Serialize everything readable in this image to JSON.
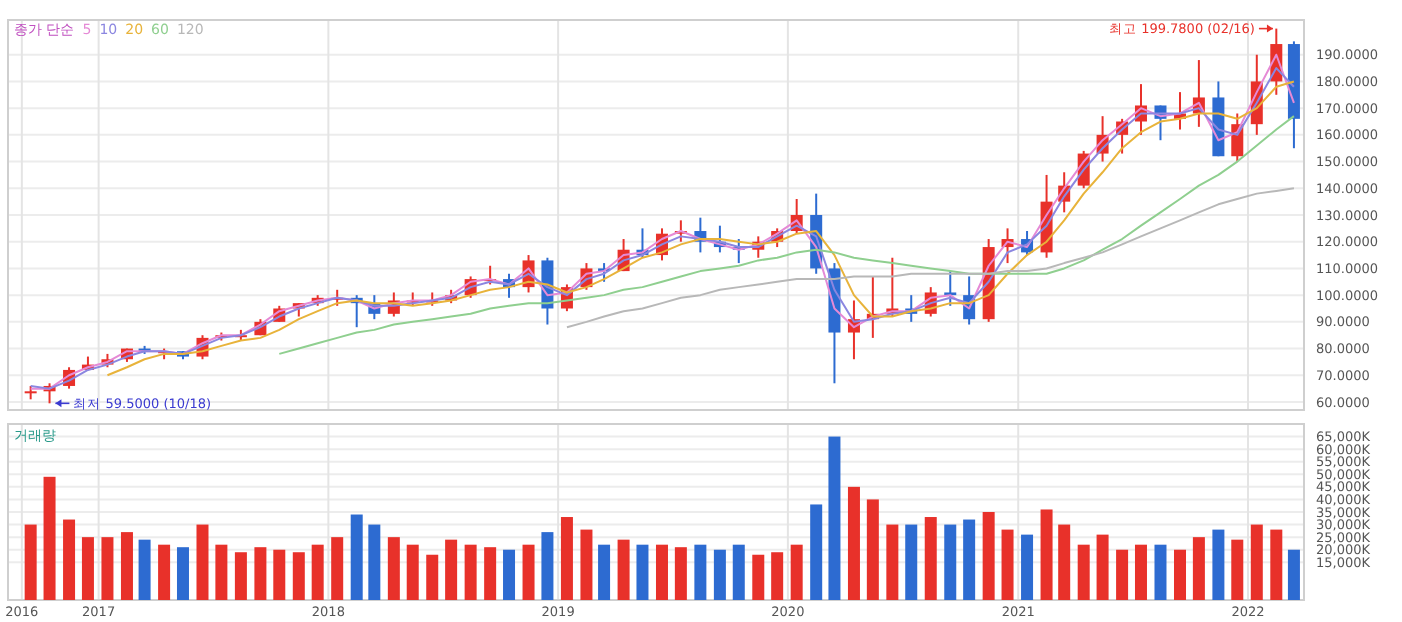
{
  "chart_data": [
    {
      "type": "candlestick",
      "legend_title": "종가 단순",
      "legend": "top left",
      "grid": true,
      "tick_labels": "y",
      "xlim": [
        "2016-08-10",
        "2022-03-31"
      ],
      "xticks": [
        {
          "value": "2016-09-01",
          "label": null
        },
        {
          "value": "2017-01-01",
          "label": null
        },
        {
          "value": "2018-01-01",
          "label": null
        },
        {
          "value": "2019-01-01",
          "label": null
        },
        {
          "value": "2020-01-01",
          "label": null
        },
        {
          "value": "2021-01-01",
          "label": null
        },
        {
          "value": "2022-01-01",
          "label": null
        }
      ],
      "ylim": [
        57,
        203
      ],
      "yticks": [
        {
          "value": 60,
          "label": "60.0000"
        },
        {
          "value": 70,
          "label": "70.0000"
        },
        {
          "value": 80,
          "label": "80.0000"
        },
        {
          "value": 90,
          "label": "90.0000"
        },
        {
          "value": 100,
          "label": "100.0000"
        },
        {
          "value": 110,
          "label": "110.0000"
        },
        {
          "value": 120,
          "label": "120.0000"
        },
        {
          "value": 130,
          "label": "130.0000"
        },
        {
          "value": 140,
          "label": "140.0000"
        },
        {
          "value": 150,
          "label": "150.0000"
        },
        {
          "value": 160,
          "label": "160.0000"
        },
        {
          "value": 170,
          "label": "170.0000"
        },
        {
          "value": 180,
          "label": "180.0000"
        },
        {
          "value": 190,
          "label": "190.0000"
        }
      ],
      "annotations": [
        {
          "text": "최고 199.7800 (02/16)",
          "x": "2022-02-16",
          "y": 199.78
        },
        {
          "text": "최저 59.5000 (10/18)",
          "x": "2016-10-18",
          "y": 59.5
        }
      ],
      "x": [
        "2016-09-15",
        "2016-10-15",
        "2016-11-15",
        "2016-12-15",
        "2017-01-15",
        "2017-02-15",
        "2017-03-15",
        "2017-04-15",
        "2017-05-15",
        "2017-06-15",
        "2017-07-15",
        "2017-08-15",
        "2017-09-15",
        "2017-10-15",
        "2017-11-15",
        "2017-12-15",
        "2018-01-15",
        "2018-02-15",
        "2018-03-15",
        "2018-04-15",
        "2018-05-15",
        "2018-06-15",
        "2018-07-15",
        "2018-08-15",
        "2018-09-15",
        "2018-10-15",
        "2018-11-15",
        "2018-12-15",
        "2019-01-15",
        "2019-02-15",
        "2019-03-15",
        "2019-04-15",
        "2019-05-15",
        "2019-06-15",
        "2019-07-15",
        "2019-08-15",
        "2019-09-15",
        "2019-10-15",
        "2019-11-15",
        "2019-12-15",
        "2020-01-15",
        "2020-02-15",
        "2020-03-15",
        "2020-04-15",
        "2020-05-15",
        "2020-06-15",
        "2020-07-15",
        "2020-08-15",
        "2020-09-15",
        "2020-10-15",
        "2020-11-15",
        "2020-12-15",
        "2021-01-15",
        "2021-02-15",
        "2021-03-15",
        "2021-04-15",
        "2021-05-15",
        "2021-06-15",
        "2021-07-15",
        "2021-08-15",
        "2021-09-15",
        "2021-10-15",
        "2021-11-15",
        "2021-12-15",
        "2022-01-15",
        "2022-02-15",
        "2022-03-15"
      ],
      "ohlc": [
        [
          64,
          66,
          61,
          64
        ],
        [
          64,
          67,
          59.5,
          66
        ],
        [
          66,
          73,
          65,
          72
        ],
        [
          72,
          77,
          72,
          74
        ],
        [
          74,
          78,
          73,
          76
        ],
        [
          76,
          80,
          75,
          80
        ],
        [
          80,
          81,
          78,
          79
        ],
        [
          79,
          80,
          76,
          79
        ],
        [
          79,
          79,
          76,
          77
        ],
        [
          77,
          85,
          76,
          84
        ],
        [
          84,
          86,
          83,
          85
        ],
        [
          85,
          87,
          83,
          85
        ],
        [
          85,
          91,
          85,
          90
        ],
        [
          90,
          96,
          90,
          95
        ],
        [
          95,
          97,
          92,
          97
        ],
        [
          97,
          100,
          96,
          99
        ],
        [
          99,
          102,
          96,
          99
        ],
        [
          99,
          100,
          88,
          97
        ],
        [
          97,
          100,
          91,
          93
        ],
        [
          93,
          101,
          92,
          98
        ],
        [
          98,
          101,
          96,
          98
        ],
        [
          98,
          101,
          96,
          98
        ],
        [
          98,
          102,
          97,
          100
        ],
        [
          100,
          107,
          99,
          106
        ],
        [
          106,
          111,
          104,
          106
        ],
        [
          106,
          108,
          99,
          103
        ],
        [
          103,
          115,
          101,
          113
        ],
        [
          113,
          114,
          89,
          95
        ],
        [
          95,
          104,
          94,
          103
        ],
        [
          103,
          112,
          102,
          110
        ],
        [
          110,
          112,
          105,
          109
        ],
        [
          109,
          121,
          109,
          117
        ],
        [
          117,
          125,
          114,
          115
        ],
        [
          115,
          125,
          113,
          123
        ],
        [
          123,
          128,
          120,
          124
        ],
        [
          124,
          129,
          116,
          120
        ],
        [
          120,
          126,
          116,
          118
        ],
        [
          118,
          121,
          112,
          117
        ],
        [
          117,
          122,
          114,
          120
        ],
        [
          120,
          125,
          118,
          124
        ],
        [
          124,
          136,
          123,
          130
        ],
        [
          130,
          138,
          108,
          110
        ],
        [
          110,
          112,
          67,
          86
        ],
        [
          86,
          98,
          76,
          91
        ],
        [
          91,
          107,
          84,
          93
        ],
        [
          93,
          114,
          92,
          95
        ],
        [
          95,
          100,
          90,
          93
        ],
        [
          93,
          103,
          92,
          101
        ],
        [
          101,
          109,
          96,
          100
        ],
        [
          100,
          107,
          89,
          91
        ],
        [
          91,
          121,
          90,
          118
        ],
        [
          118,
          125,
          112,
          121
        ],
        [
          121,
          124,
          115,
          116
        ],
        [
          116,
          145,
          114,
          135
        ],
        [
          135,
          146,
          131,
          141
        ],
        [
          141,
          154,
          140,
          153
        ],
        [
          153,
          167,
          150,
          160
        ],
        [
          160,
          166,
          153,
          165
        ],
        [
          165,
          179,
          160,
          171
        ],
        [
          171,
          171,
          158,
          166
        ],
        [
          166,
          176,
          162,
          168
        ],
        [
          168,
          188,
          163,
          174
        ],
        [
          174,
          180,
          152,
          152
        ],
        [
          152,
          168,
          150,
          164
        ],
        [
          164,
          190,
          160,
          180
        ],
        [
          180,
          199.78,
          175,
          194
        ],
        [
          194,
          195,
          155,
          166
        ]
      ],
      "colors": [
        "#e8312a",
        "#e8312a",
        "#e8312a",
        "#e8312a",
        "#e8312a",
        "#e8312a",
        "#2d6bd1",
        "#e8312a",
        "#2d6bd1",
        "#e8312a",
        "#e8312a",
        "#e8312a",
        "#e8312a",
        "#e8312a",
        "#e8312a",
        "#e8312a",
        "#e8312a",
        "#2d6bd1",
        "#2d6bd1",
        "#e8312a",
        "#e8312a",
        "#e8312a",
        "#e8312a",
        "#e8312a",
        "#e8312a",
        "#2d6bd1",
        "#e8312a",
        "#2d6bd1",
        "#e8312a",
        "#e8312a",
        "#2d6bd1",
        "#e8312a",
        "#2d6bd1",
        "#e8312a",
        "#e8312a",
        "#2d6bd1",
        "#2d6bd1",
        "#2d6bd1",
        "#e8312a",
        "#e8312a",
        "#e8312a",
        "#2d6bd1",
        "#2d6bd1",
        "#e8312a",
        "#e8312a",
        "#e8312a",
        "#2d6bd1",
        "#e8312a",
        "#2d6bd1",
        "#2d6bd1",
        "#e8312a",
        "#e8312a",
        "#2d6bd1",
        "#e8312a",
        "#e8312a",
        "#e8312a",
        "#e8312a",
        "#e8312a",
        "#e8312a",
        "#2d6bd1",
        "#e8312a",
        "#e8312a",
        "#2d6bd1",
        "#e8312a",
        "#e8312a",
        "#e8312a",
        "#2d6bd1"
      ],
      "series": [
        {
          "name": "5",
          "type": "line",
          "color": "#e58ad6",
          "values": [
            65,
            65,
            70,
            73,
            75,
            79,
            79,
            79,
            78,
            82,
            85,
            85,
            89,
            94,
            96,
            98,
            99,
            98,
            95,
            97,
            98,
            98,
            100,
            105,
            106,
            104,
            110,
            100,
            101,
            108,
            109,
            115,
            116,
            121,
            124,
            121,
            119,
            117,
            119,
            123,
            128,
            118,
            95,
            88,
            92,
            94,
            94,
            99,
            100,
            95,
            111,
            120,
            118,
            130,
            140,
            150,
            158,
            164,
            170,
            167,
            168,
            172,
            158,
            161,
            176,
            190,
            172
          ]
        },
        {
          "name": "10",
          "type": "line",
          "color": "#8b86e0",
          "values": [
            66,
            65,
            68,
            72,
            74,
            77,
            79,
            79,
            78,
            81,
            84,
            85,
            88,
            92,
            95,
            97,
            99,
            98,
            96,
            96,
            97,
            98,
            99,
            103,
            105,
            104,
            108,
            103,
            100,
            106,
            108,
            113,
            115,
            119,
            122,
            121,
            120,
            118,
            118,
            122,
            126,
            122,
            102,
            90,
            91,
            93,
            94,
            97,
            99,
            97,
            105,
            116,
            119,
            126,
            137,
            147,
            155,
            162,
            168,
            168,
            168,
            170,
            162,
            160,
            172,
            185,
            178
          ]
        },
        {
          "name": "20",
          "type": "line",
          "color": "#e8b33a",
          "values": [
            null,
            null,
            null,
            null,
            70,
            73,
            76,
            78,
            78,
            79,
            81,
            83,
            84,
            87,
            91,
            94,
            97,
            98,
            97,
            97,
            96,
            97,
            98,
            100,
            102,
            103,
            105,
            104,
            101,
            103,
            106,
            110,
            114,
            116,
            119,
            121,
            121,
            120,
            119,
            120,
            123,
            124,
            115,
            100,
            92,
            92,
            94,
            95,
            97,
            97,
            100,
            108,
            115,
            120,
            128,
            138,
            146,
            155,
            161,
            165,
            166,
            168,
            168,
            166,
            170,
            178,
            180
          ]
        },
        {
          "name": "60",
          "type": "line",
          "color": "#8fcf8f",
          "values": [
            null,
            null,
            null,
            null,
            null,
            null,
            null,
            null,
            null,
            null,
            null,
            null,
            null,
            78,
            80,
            82,
            84,
            86,
            87,
            89,
            90,
            91,
            92,
            93,
            95,
            96,
            97,
            97,
            98,
            99,
            100,
            102,
            103,
            105,
            107,
            109,
            110,
            111,
            113,
            114,
            116,
            117,
            116,
            114,
            113,
            112,
            111,
            110,
            109,
            108,
            108,
            108,
            108,
            108,
            110,
            113,
            117,
            121,
            126,
            131,
            136,
            141,
            145,
            150,
            156,
            162,
            167
          ]
        },
        {
          "name": "120",
          "type": "line",
          "color": "#b8b8b8",
          "values": [
            null,
            null,
            null,
            null,
            null,
            null,
            null,
            null,
            null,
            null,
            null,
            null,
            null,
            null,
            null,
            null,
            null,
            null,
            null,
            null,
            null,
            null,
            null,
            null,
            null,
            null,
            null,
            null,
            88,
            90,
            92,
            94,
            95,
            97,
            99,
            100,
            102,
            103,
            104,
            105,
            106,
            106,
            106,
            107,
            107,
            107,
            108,
            108,
            108,
            108,
            108,
            109,
            109,
            110,
            112,
            114,
            116,
            119,
            122,
            125,
            128,
            131,
            134,
            136,
            138,
            139,
            140
          ]
        }
      ]
    },
    {
      "type": "bar",
      "ylabel": "거래량",
      "grid": true,
      "xlim": [
        "2016-08-10",
        "2022-03-31"
      ],
      "xticks": [
        {
          "value": "2016-09-01",
          "label": "2016"
        },
        {
          "value": "2017-01-01",
          "label": "2017"
        },
        {
          "value": "2018-01-01",
          "label": "2018"
        },
        {
          "value": "2019-01-01",
          "label": "2019"
        },
        {
          "value": "2020-01-01",
          "label": "2020"
        },
        {
          "value": "2021-01-01",
          "label": "2021"
        },
        {
          "value": "2022-01-01",
          "label": "2022"
        }
      ],
      "ylim": [
        0,
        70000
      ],
      "yticks": [
        {
          "value": 15000,
          "label": "15,000K"
        },
        {
          "value": 20000,
          "label": "20,000K"
        },
        {
          "value": 25000,
          "label": "25,000K"
        },
        {
          "value": 30000,
          "label": "30,000K"
        },
        {
          "value": 35000,
          "label": "35,000K"
        },
        {
          "value": 40000,
          "label": "40,000K"
        },
        {
          "value": 45000,
          "label": "45,000K"
        },
        {
          "value": 50000,
          "label": "50,000K"
        },
        {
          "value": 55000,
          "label": "55,000K"
        },
        {
          "value": 60000,
          "label": "60,000K"
        },
        {
          "value": 65000,
          "label": "65,000K"
        }
      ],
      "x": [
        "2016-09-15",
        "2016-10-15",
        "2016-11-15",
        "2016-12-15",
        "2017-01-15",
        "2017-02-15",
        "2017-03-15",
        "2017-04-15",
        "2017-05-15",
        "2017-06-15",
        "2017-07-15",
        "2017-08-15",
        "2017-09-15",
        "2017-10-15",
        "2017-11-15",
        "2017-12-15",
        "2018-01-15",
        "2018-02-15",
        "2018-03-15",
        "2018-04-15",
        "2018-05-15",
        "2018-06-15",
        "2018-07-15",
        "2018-08-15",
        "2018-09-15",
        "2018-10-15",
        "2018-11-15",
        "2018-12-15",
        "2019-01-15",
        "2019-02-15",
        "2019-03-15",
        "2019-04-15",
        "2019-05-15",
        "2019-06-15",
        "2019-07-15",
        "2019-08-15",
        "2019-09-15",
        "2019-10-15",
        "2019-11-15",
        "2019-12-15",
        "2020-01-15",
        "2020-02-15",
        "2020-03-15",
        "2020-04-15",
        "2020-05-15",
        "2020-06-15",
        "2020-07-15",
        "2020-08-15",
        "2020-09-15",
        "2020-10-15",
        "2020-11-15",
        "2020-12-15",
        "2021-01-15",
        "2021-02-15",
        "2021-03-15",
        "2021-04-15",
        "2021-05-15",
        "2021-06-15",
        "2021-07-15",
        "2021-08-15",
        "2021-09-15",
        "2021-10-15",
        "2021-11-15",
        "2021-12-15",
        "2022-01-15",
        "2022-02-15",
        "2022-03-15"
      ],
      "values": [
        30000,
        49000,
        32000,
        25000,
        25000,
        27000,
        24000,
        22000,
        21000,
        30000,
        22000,
        19000,
        21000,
        20000,
        19000,
        22000,
        25000,
        34000,
        30000,
        25000,
        22000,
        18000,
        24000,
        22000,
        21000,
        20000,
        22000,
        27000,
        33000,
        28000,
        22000,
        24000,
        22000,
        22000,
        21000,
        22000,
        20000,
        22000,
        18000,
        19000,
        22000,
        38000,
        65000,
        45000,
        40000,
        30000,
        30000,
        33000,
        30000,
        32000,
        35000,
        28000,
        26000,
        36000,
        30000,
        22000,
        26000,
        20000,
        22000,
        22000,
        20000,
        25000,
        28000,
        24000,
        30000,
        28000,
        20000
      ],
      "colors": [
        "#e8312a",
        "#e8312a",
        "#e8312a",
        "#e8312a",
        "#e8312a",
        "#e8312a",
        "#2d6bd1",
        "#e8312a",
        "#2d6bd1",
        "#e8312a",
        "#e8312a",
        "#e8312a",
        "#e8312a",
        "#e8312a",
        "#e8312a",
        "#e8312a",
        "#e8312a",
        "#2d6bd1",
        "#2d6bd1",
        "#e8312a",
        "#e8312a",
        "#e8312a",
        "#e8312a",
        "#e8312a",
        "#e8312a",
        "#2d6bd1",
        "#e8312a",
        "#2d6bd1",
        "#e8312a",
        "#e8312a",
        "#2d6bd1",
        "#e8312a",
        "#2d6bd1",
        "#e8312a",
        "#e8312a",
        "#2d6bd1",
        "#2d6bd1",
        "#2d6bd1",
        "#e8312a",
        "#e8312a",
        "#e8312a",
        "#2d6bd1",
        "#2d6bd1",
        "#e8312a",
        "#e8312a",
        "#e8312a",
        "#2d6bd1",
        "#e8312a",
        "#2d6bd1",
        "#2d6bd1",
        "#e8312a",
        "#e8312a",
        "#2d6bd1",
        "#e8312a",
        "#e8312a",
        "#e8312a",
        "#e8312a",
        "#e8312a",
        "#e8312a",
        "#2d6bd1",
        "#e8312a",
        "#e8312a",
        "#2d6bd1",
        "#e8312a",
        "#e8312a",
        "#e8312a",
        "#2d6bd1"
      ]
    }
  ]
}
